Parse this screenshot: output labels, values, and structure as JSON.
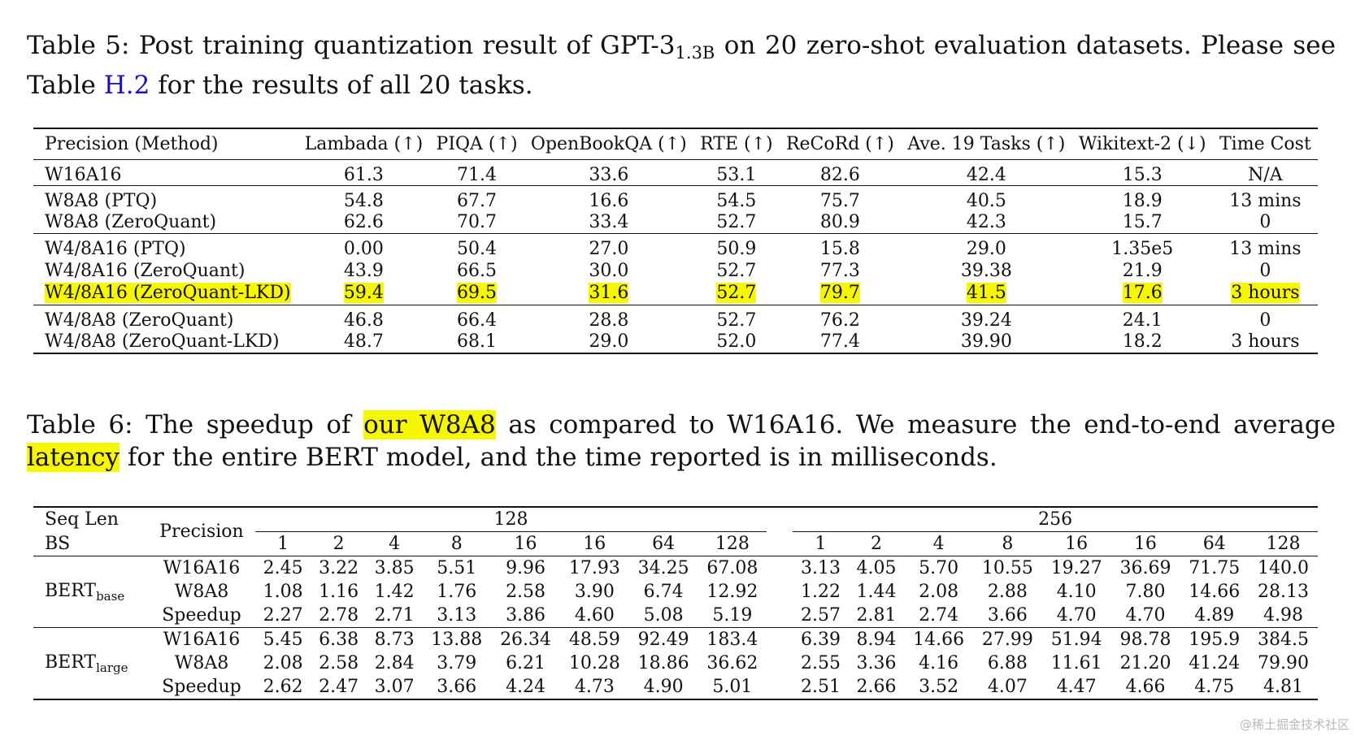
{
  "table5": {
    "caption": {
      "prefix": "Table 5: Post training quantization result of GPT-3",
      "subscript": "1.3B",
      "middle": " on 20 zero-shot evaluation datasets. Please see Table ",
      "link": "H.2",
      "suffix": " for the results of all 20 tasks."
    },
    "headers": [
      "Precision (Method)",
      "Lambada (↑)",
      "PIQA (↑)",
      "OpenBookQA (↑)",
      "RTE (↑)",
      "ReCoRd (↑)",
      "Ave. 19 Tasks (↑)",
      "Wikitext-2 (↓)",
      "Time Cost"
    ],
    "groups": [
      [
        [
          "W16A16",
          "61.3",
          "71.4",
          "33.6",
          "53.1",
          "82.6",
          "42.4",
          "15.3",
          "N/A"
        ]
      ],
      [
        [
          "W8A8 (PTQ)",
          "54.8",
          "67.7",
          "16.6",
          "54.5",
          "75.7",
          "40.5",
          "18.9",
          "13 mins"
        ],
        [
          "W8A8 (ZeroQuant)",
          "62.6",
          "70.7",
          "33.4",
          "52.7",
          "80.9",
          "42.3",
          "15.7",
          "0"
        ]
      ],
      [
        [
          "W4/8A16 (PTQ)",
          "0.00",
          "50.4",
          "27.0",
          "50.9",
          "15.8",
          "29.0",
          "1.35e5",
          "13 mins"
        ],
        [
          "W4/8A16 (ZeroQuant)",
          "43.9",
          "66.5",
          "30.0",
          "52.7",
          "77.3",
          "39.38",
          "21.9",
          "0"
        ],
        [
          "W4/8A16 (ZeroQuant-LKD)",
          "59.4",
          "69.5",
          "31.6",
          "52.7",
          "79.7",
          "41.5",
          "17.6",
          "3 hours"
        ]
      ],
      [
        [
          "W4/8A8 (ZeroQuant)",
          "46.8",
          "66.4",
          "28.8",
          "52.7",
          "76.2",
          "39.24",
          "24.1",
          "0"
        ],
        [
          "W4/8A8 (ZeroQuant-LKD)",
          "48.7",
          "68.1",
          "29.0",
          "52.0",
          "77.4",
          "39.90",
          "18.2",
          "3 hours"
        ]
      ]
    ],
    "highlight_color": "#f7f700"
  },
  "table6": {
    "caption": {
      "prefix": "Table 6: The speedup of ",
      "hl1": "our W8A8",
      "middle": " as compared to W16A16. We measure the end-to-end average ",
      "hl2": "latency",
      "suffix": " for the entire BERT model, and the time reported is in milliseconds."
    },
    "header": {
      "seq_len": "Seq Len",
      "bs": "BS",
      "precision": "Precision",
      "group1": "128",
      "group2": "256",
      "bs_values": [
        "1",
        "2",
        "4",
        "8",
        "16",
        "16",
        "64",
        "128"
      ]
    },
    "models": [
      {
        "name": "BERT",
        "sub": "base",
        "rows": [
          {
            "precision": "W16A16",
            "g1": [
              "2.45",
              "3.22",
              "3.85",
              "5.51",
              "9.96",
              "17.93",
              "34.25",
              "67.08"
            ],
            "g2": [
              "3.13",
              "4.05",
              "5.70",
              "10.55",
              "19.27",
              "36.69",
              "71.75",
              "140.0"
            ]
          },
          {
            "precision": "W8A8",
            "g1": [
              "1.08",
              "1.16",
              "1.42",
              "1.76",
              "2.58",
              "3.90",
              "6.74",
              "12.92"
            ],
            "g2": [
              "1.22",
              "1.44",
              "2.08",
              "2.88",
              "4.10",
              "7.80",
              "14.66",
              "28.13"
            ]
          },
          {
            "precision": "Speedup",
            "g1": [
              "2.27",
              "2.78",
              "2.71",
              "3.13",
              "3.86",
              "4.60",
              "5.08",
              "5.19"
            ],
            "g2": [
              "2.57",
              "2.81",
              "2.74",
              "3.66",
              "4.70",
              "4.70",
              "4.89",
              "4.98"
            ]
          }
        ]
      },
      {
        "name": "BERT",
        "sub": "large",
        "rows": [
          {
            "precision": "W16A16",
            "g1": [
              "5.45",
              "6.38",
              "8.73",
              "13.88",
              "26.34",
              "48.59",
              "92.49",
              "183.4"
            ],
            "g2": [
              "6.39",
              "8.94",
              "14.66",
              "27.99",
              "51.94",
              "98.78",
              "195.9",
              "384.5"
            ]
          },
          {
            "precision": "W8A8",
            "g1": [
              "2.08",
              "2.58",
              "2.84",
              "3.79",
              "6.21",
              "10.28",
              "18.86",
              "36.62"
            ],
            "g2": [
              "2.55",
              "3.36",
              "4.16",
              "6.88",
              "11.61",
              "21.20",
              "41.24",
              "79.90"
            ]
          },
          {
            "precision": "Speedup",
            "g1": [
              "2.62",
              "2.47",
              "3.07",
              "3.66",
              "4.24",
              "4.73",
              "4.90",
              "5.01"
            ],
            "g2": [
              "2.51",
              "2.66",
              "3.52",
              "4.07",
              "4.47",
              "4.66",
              "4.75",
              "4.81"
            ]
          }
        ]
      }
    ]
  },
  "watermark": "@稀土掘金技术社区"
}
